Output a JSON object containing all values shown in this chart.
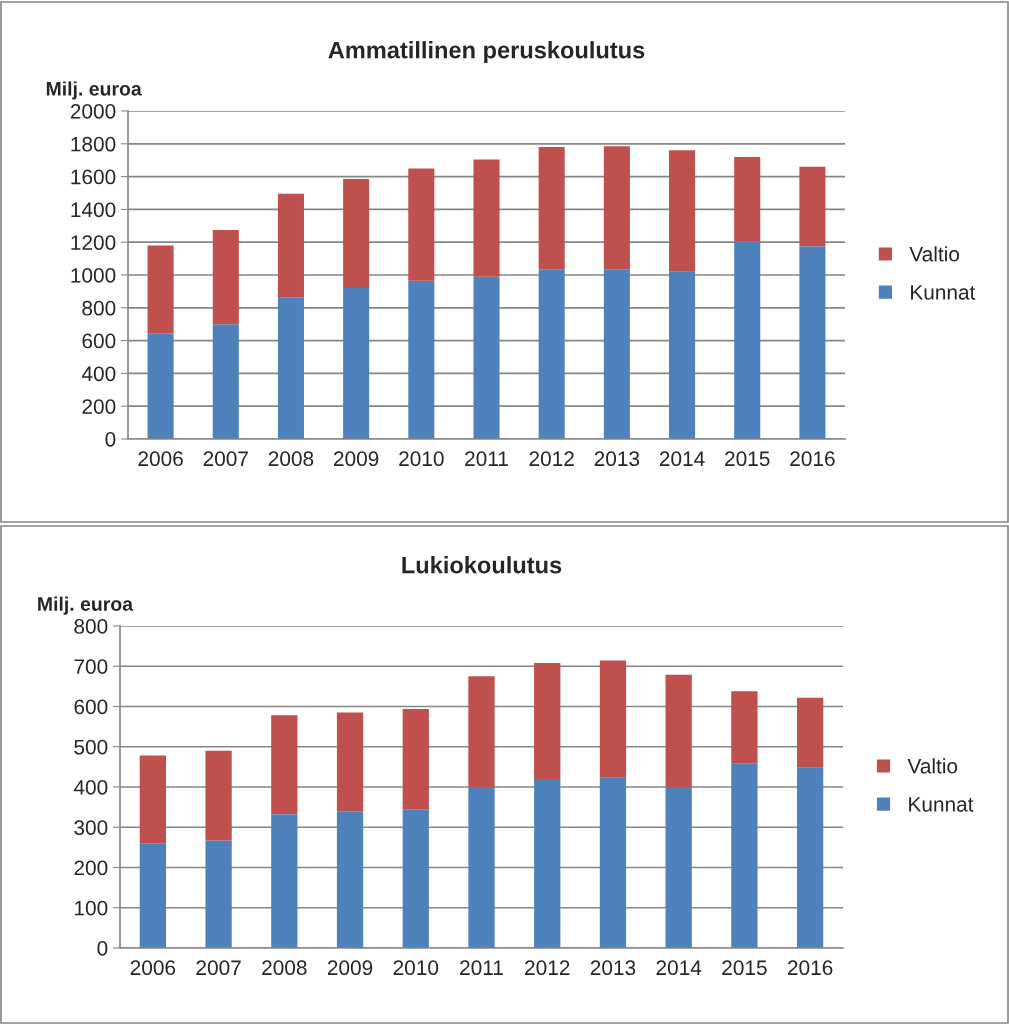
{
  "chart_data": [
    {
      "type": "bar",
      "title": "Ammatillinen peruskoulutus",
      "ylabel": "Milj. euroa",
      "stacked": true,
      "categories": [
        "2006",
        "2007",
        "2008",
        "2009",
        "2010",
        "2011",
        "2012",
        "2013",
        "2014",
        "2015",
        "2016"
      ],
      "series": [
        {
          "name": "Kunnat",
          "color": "#4f81bd",
          "values": [
            645,
            700,
            865,
            920,
            965,
            990,
            1035,
            1035,
            1020,
            1205,
            1175
          ]
        },
        {
          "name": "Valtio",
          "color": "#c0504d",
          "values": [
            535,
            575,
            630,
            665,
            685,
            715,
            745,
            750,
            740,
            515,
            485
          ]
        }
      ],
      "ylim": [
        0,
        2000
      ],
      "yticks": [
        0,
        200,
        400,
        600,
        800,
        1000,
        1200,
        1400,
        1600,
        1800,
        2000
      ],
      "grid": "y",
      "legend": "right"
    },
    {
      "type": "bar",
      "title": "Lukiokoulutus",
      "ylabel": "Milj. euroa",
      "stacked": true,
      "categories": [
        "2006",
        "2007",
        "2008",
        "2009",
        "2010",
        "2011",
        "2012",
        "2013",
        "2014",
        "2015",
        "2016"
      ],
      "series": [
        {
          "name": "Kunnat",
          "color": "#4f81bd",
          "values": [
            260,
            267,
            332,
            340,
            345,
            400,
            420,
            423,
            400,
            458,
            448
          ]
        },
        {
          "name": "Valtio",
          "color": "#c0504d",
          "values": [
            218,
            223,
            246,
            245,
            249,
            275,
            288,
            291,
            279,
            180,
            174
          ]
        }
      ],
      "ylim": [
        0,
        800
      ],
      "yticks": [
        0,
        100,
        200,
        300,
        400,
        500,
        600,
        700,
        800
      ],
      "grid": "y",
      "legend": "right"
    }
  ]
}
